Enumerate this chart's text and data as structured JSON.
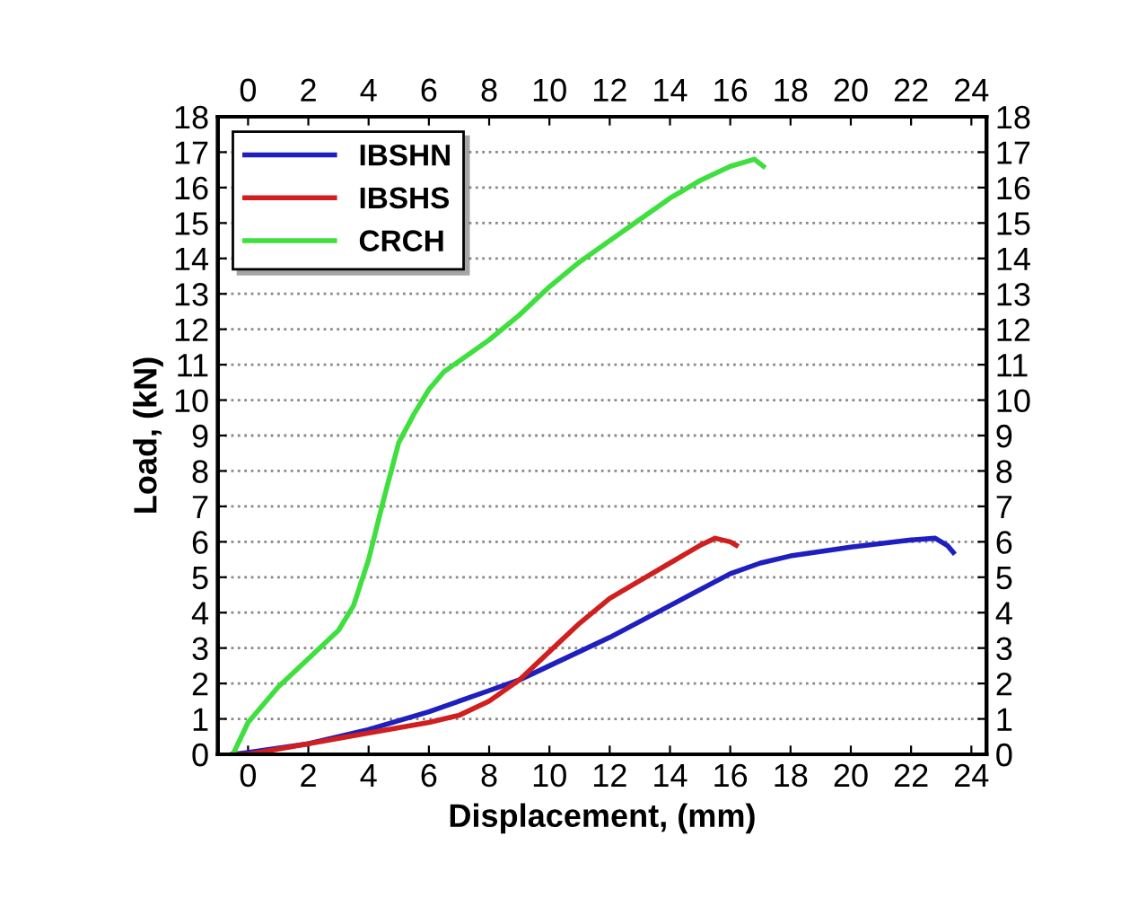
{
  "chart_data": {
    "type": "line",
    "xlabel": "Displacement, (mm)",
    "ylabel": "Load, (kN)",
    "xlim": [
      -1,
      24.5
    ],
    "xticks": [
      0,
      2,
      4,
      6,
      8,
      10,
      12,
      14,
      16,
      18,
      20,
      22,
      24
    ],
    "x2lim": [
      -1,
      24.5
    ],
    "x2ticks": [
      0,
      2,
      4,
      6,
      8,
      10,
      12,
      14,
      16,
      18,
      20,
      22,
      24
    ],
    "ylim": [
      0,
      18
    ],
    "yticks": [
      0,
      1,
      2,
      3,
      4,
      5,
      6,
      7,
      8,
      9,
      10,
      11,
      12,
      13,
      14,
      15,
      16,
      17,
      18
    ],
    "y2lim": [
      0,
      18
    ],
    "y2ticks": [
      0,
      1,
      2,
      3,
      4,
      5,
      6,
      7,
      8,
      9,
      10,
      11,
      12,
      13,
      14,
      15,
      16,
      17,
      18
    ],
    "grid": "y",
    "legend": "top left",
    "line_style": "solid",
    "marker": "none",
    "series": [
      {
        "name": "IBSHN",
        "color": "#1f1fbf",
        "x": [
          -0.5,
          0,
          2,
          4,
          6,
          8,
          9,
          10,
          12,
          14,
          16,
          17,
          18,
          20,
          22,
          22.8,
          23.2,
          23.4
        ],
        "values": [
          0,
          0.05,
          0.3,
          0.7,
          1.2,
          1.8,
          2.1,
          2.5,
          3.3,
          4.2,
          5.1,
          5.4,
          5.6,
          5.85,
          6.05,
          6.1,
          5.9,
          5.7
        ]
      },
      {
        "name": "IBSHS",
        "color": "#d01f1f",
        "x": [
          -0.5,
          0,
          2,
          4,
          6,
          7,
          8,
          9,
          10,
          11,
          12,
          13,
          14,
          15,
          15.5,
          16,
          16.2
        ],
        "values": [
          0,
          0,
          0.3,
          0.6,
          0.9,
          1.1,
          1.5,
          2.1,
          2.9,
          3.7,
          4.4,
          4.9,
          5.4,
          5.9,
          6.1,
          6.0,
          5.9
        ]
      },
      {
        "name": "CRCH",
        "color": "#3fdf3f",
        "x": [
          -0.5,
          0,
          1,
          2,
          3,
          3.5,
          4,
          4.5,
          5,
          5.5,
          6,
          6.5,
          7,
          8,
          9,
          10,
          11,
          12,
          13,
          14,
          15,
          16,
          16.8,
          17.1
        ],
        "values": [
          0,
          0.9,
          1.9,
          2.7,
          3.5,
          4.2,
          5.5,
          7.2,
          8.8,
          9.6,
          10.3,
          10.8,
          11.1,
          11.7,
          12.4,
          13.2,
          13.9,
          14.5,
          15.1,
          15.7,
          16.2,
          16.6,
          16.8,
          16.6
        ]
      }
    ]
  }
}
